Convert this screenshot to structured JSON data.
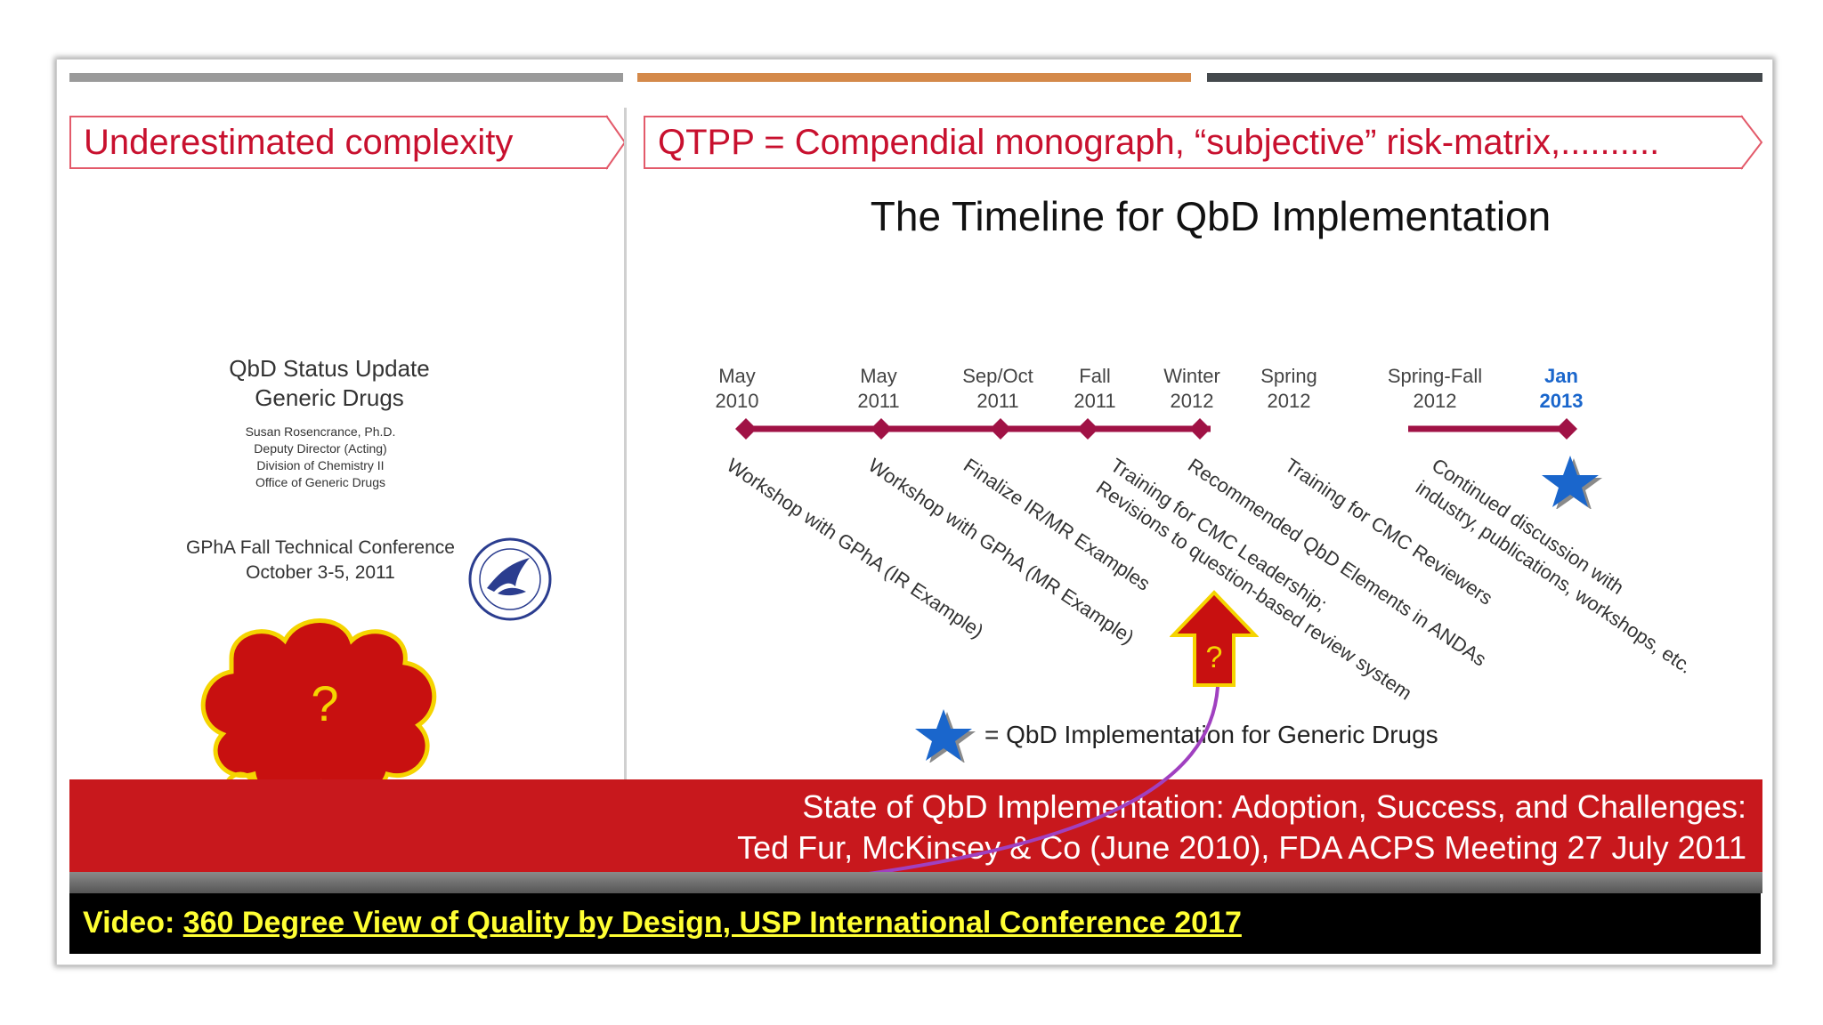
{
  "left_slide": {
    "header": "Underestimated complexity",
    "title_line1": "QbD Status Update",
    "title_line2": "Generic Drugs",
    "author_lines": [
      "Susan Rosencrance, Ph.D.",
      "Deputy Director (Acting)",
      "Division of Chemistry II",
      "Office of Generic Drugs"
    ],
    "conference_line1": "GPhA Fall Technical Conference",
    "conference_line2": "October 3-5, 2011",
    "cloud_text": "?"
  },
  "right_slide": {
    "header": "QTPP = Compendial monograph, “subjective” risk-matrix,..........",
    "title": "The Timeline for QbD Implementation",
    "timeline": [
      {
        "line1": "May",
        "line2": "2010"
      },
      {
        "line1": "May",
        "line2": "2011"
      },
      {
        "line1": "Sep/Oct",
        "line2": "2011"
      },
      {
        "line1": "Fall",
        "line2": "2011"
      },
      {
        "line1": "Winter",
        "line2": "2012"
      },
      {
        "line1": "Spring",
        "line2": "2012"
      },
      {
        "line1": "Spring-Fall",
        "line2": "2012"
      },
      {
        "line1": "Jan",
        "line2": "2013"
      }
    ],
    "events": [
      "Workshop with GPhA (IR Example)",
      "Workshop with GPhA (MR Example)",
      "Finalize IR/MR Examples",
      "Training for CMC Leadership;",
      "Revisions to question-based review system",
      "Recommended QbD Elements in ANDAs",
      "Training for CMC Reviewers",
      "Continued discussion with",
      "industry, publications, workshops, etc."
    ],
    "arrow_text": "?",
    "legend": "=  QbD Implementation for Generic Drugs"
  },
  "banner": {
    "line1": "State of QbD Implementation: Adoption, Success, and Challenges:",
    "line2": "Ted Fur, McKinsey & Co (June 2010), FDA ACPS Meeting  27 July 2011"
  },
  "video": {
    "prefix": "Video: ",
    "link": "360 Degree View of Quality by Design, USP International Conference 2017"
  },
  "colors": {
    "accent_red": "#c8181d",
    "timeline": "#a01245",
    "star": "#1a66cc",
    "video_text": "#ffff33"
  }
}
